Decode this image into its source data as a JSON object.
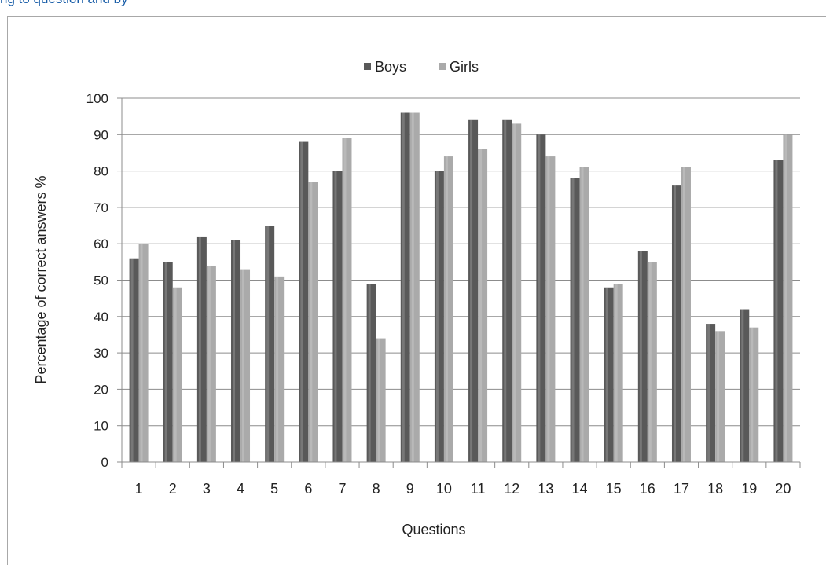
{
  "caption": "ng to question and by",
  "chart_data": {
    "type": "bar",
    "title": "",
    "xlabel": "Questions",
    "ylabel": "Percentage of correct answers %",
    "ylim": [
      0,
      100
    ],
    "yticks": [
      0,
      10,
      20,
      30,
      40,
      50,
      60,
      70,
      80,
      90,
      100
    ],
    "grid": true,
    "legend_position": "top-center",
    "categories": [
      "1",
      "2",
      "3",
      "4",
      "5",
      "6",
      "7",
      "8",
      "9",
      "10",
      "11",
      "12",
      "13",
      "14",
      "15",
      "16",
      "17",
      "18",
      "19",
      "20"
    ],
    "series": [
      {
        "name": "Boys",
        "color": "#595959",
        "values": [
          56,
          55,
          62,
          61,
          65,
          88,
          80,
          49,
          96,
          80,
          94,
          94,
          90,
          78,
          48,
          58,
          76,
          38,
          42,
          83
        ]
      },
      {
        "name": "Girls",
        "color": "#aaaaaa",
        "values": [
          60,
          48,
          54,
          53,
          51,
          77,
          89,
          34,
          96,
          84,
          86,
          93,
          84,
          81,
          49,
          55,
          81,
          36,
          37,
          90
        ]
      }
    ]
  }
}
